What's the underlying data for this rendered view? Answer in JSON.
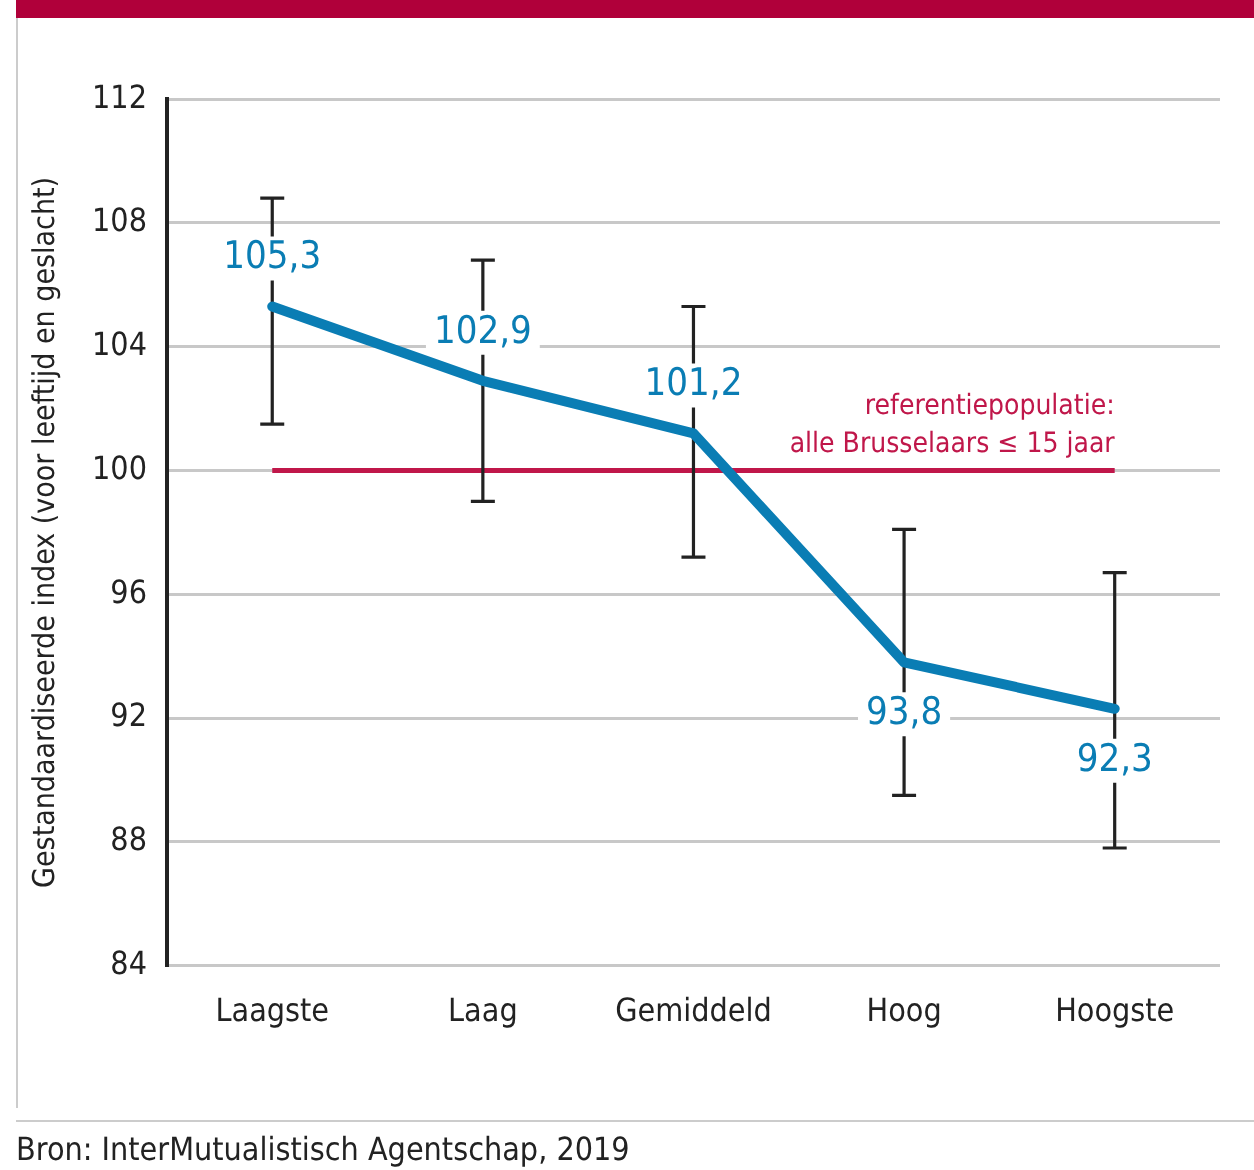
{
  "chart_data": {
    "type": "line",
    "ylabel": "Gestandaardiseerde index (voor leeftijd en geslacht)",
    "categories": [
      "Laagste",
      "Laag",
      "Gemiddeld",
      "Hoog",
      "Hoogste"
    ],
    "series": [
      {
        "color": "#0a7db4",
        "values": [
          105.3,
          102.9,
          101.2,
          93.8,
          92.3
        ],
        "errors": [
          [
            101.5,
            108.8
          ],
          [
            99.0,
            106.8
          ],
          [
            97.2,
            105.3
          ],
          [
            89.5,
            98.1
          ],
          [
            87.8,
            96.7
          ]
        ],
        "value_labels": [
          "105,3",
          "102,9",
          "101,2",
          "93,8",
          "92,3"
        ]
      }
    ],
    "ylim": [
      84,
      112
    ],
    "yticks": [
      84,
      88,
      92,
      96,
      100,
      104,
      108,
      112
    ],
    "grid": "y",
    "legend": false,
    "marker": "none",
    "line_style": "solid",
    "ref_lines": [
      {
        "axis": "y",
        "value": 100,
        "label": "referentiepopulatie:\nalle Brusselaars ≤ 15 jaar",
        "color": "#c0174a"
      }
    ],
    "annotations": [
      "Bron: InterMutualistisch Agentschap, 2019"
    ]
  }
}
